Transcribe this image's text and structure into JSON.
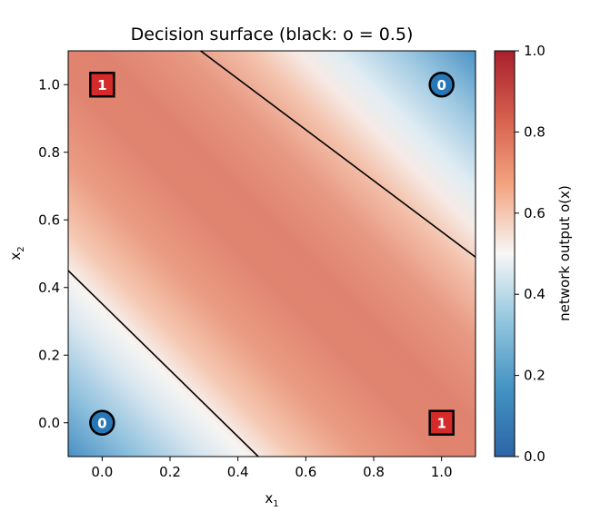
{
  "chart_data": {
    "type": "heatmap",
    "title": "Decision surface  (black: o = 0.5)",
    "xlabel": "x",
    "xlabel_sub": "1",
    "ylabel": "x",
    "ylabel_sub": "2",
    "xlim": [
      -0.1,
      1.1
    ],
    "ylim": [
      -0.1,
      1.1
    ],
    "xticks": [
      "0.0",
      "0.2",
      "0.4",
      "0.6",
      "0.8",
      "1.0"
    ],
    "yticks": [
      "0.0",
      "0.2",
      "0.4",
      "0.6",
      "0.8",
      "1.0"
    ],
    "colorbar": {
      "label": "network output  o(x)",
      "range": [
        0.0,
        1.0
      ],
      "ticks": [
        "0.0",
        "0.2",
        "0.4",
        "0.6",
        "0.8",
        "1.0"
      ],
      "colormap": [
        "#2c65a6",
        "#4393c3",
        "#92c5de",
        "#f7f7f7",
        "#f4a582",
        "#d6604d",
        "#a9202d"
      ]
    },
    "contour_level": 0.5,
    "contours": [
      {
        "from": [
          0.29,
          1.1
        ],
        "to": [
          1.1,
          0.49
        ]
      },
      {
        "from": [
          -0.1,
          0.45
        ],
        "to": [
          0.46,
          -0.1
        ]
      }
    ],
    "points": [
      {
        "x": 0,
        "y": 0,
        "label": "0",
        "marker": "circle"
      },
      {
        "x": 1,
        "y": 1,
        "label": "0",
        "marker": "circle"
      },
      {
        "x": 0,
        "y": 1,
        "label": "1",
        "marker": "square"
      },
      {
        "x": 1,
        "y": 0,
        "label": "1",
        "marker": "square"
      }
    ],
    "colors": {
      "class0": "#2878b8",
      "class1": "#d42a2a",
      "contour": "#000000"
    },
    "grid": false
  }
}
